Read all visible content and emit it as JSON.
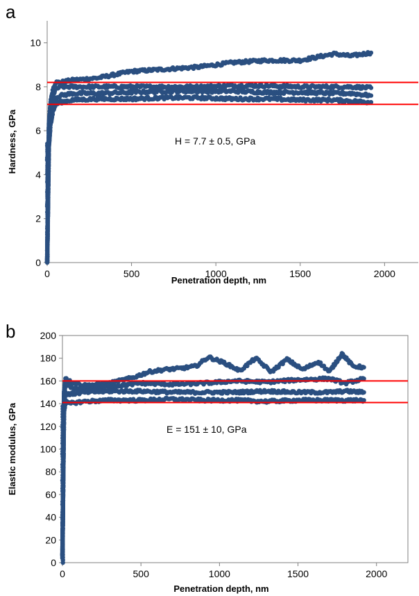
{
  "chart_data": [
    {
      "panel": "a",
      "type": "scatter",
      "xlabel": "Penetration depth,  nm",
      "ylabel": "Hardness,  GPa",
      "xlim": [
        0,
        2200
      ],
      "ylim": [
        0,
        11
      ],
      "xticks": [
        0,
        500,
        1000,
        1500,
        2000
      ],
      "yticks": [
        0,
        2,
        4,
        6,
        8,
        10
      ],
      "grid": false,
      "frame": "left-bottom",
      "series_color": "#2a4f80",
      "reference_color": "#ff0000",
      "reference_lines": [
        8.2,
        7.2
      ],
      "annotation": "H  =  7.7  ±  0.5,  GPa",
      "series": [
        {
          "x": [
            0,
            10,
            20,
            35,
            50,
            80,
            150,
            300,
            500,
            700,
            900,
            1100,
            1300,
            1500,
            1700,
            1800,
            1920
          ],
          "y": [
            0,
            6.3,
            7.3,
            7.9,
            8.2,
            8.2,
            8.3,
            8.4,
            8.7,
            8.8,
            8.9,
            9.1,
            9.2,
            9.2,
            9.5,
            9.4,
            9.55
          ]
        },
        {
          "x": [
            0,
            10,
            20,
            35,
            50,
            80,
            150,
            300,
            500,
            700,
            900,
            1100,
            1300,
            1500,
            1700,
            1800,
            1920
          ],
          "y": [
            0,
            5.9,
            7.0,
            7.6,
            7.9,
            8.0,
            8.0,
            8.0,
            8.0,
            8.0,
            8.0,
            8.05,
            8.05,
            8.0,
            8.0,
            8.0,
            7.95
          ]
        },
        {
          "x": [
            0,
            10,
            20,
            35,
            50,
            80,
            150,
            300,
            500,
            700,
            900,
            1100,
            1300,
            1500,
            1700,
            1800,
            1920
          ],
          "y": [
            0,
            5.5,
            6.6,
            7.2,
            7.5,
            7.6,
            7.7,
            7.7,
            7.75,
            7.8,
            7.8,
            7.8,
            7.75,
            7.75,
            7.7,
            7.7,
            7.6
          ]
        },
        {
          "x": [
            0,
            10,
            20,
            35,
            50,
            80,
            150,
            300,
            500,
            700,
            900,
            1100,
            1300,
            1500,
            1700,
            1800,
            1920
          ],
          "y": [
            0,
            5.2,
            6.3,
            6.9,
            7.2,
            7.3,
            7.4,
            7.45,
            7.45,
            7.5,
            7.5,
            7.45,
            7.45,
            7.4,
            7.4,
            7.35,
            7.3
          ]
        }
      ]
    },
    {
      "panel": "b",
      "type": "scatter",
      "xlabel": "Penetration depth,  nm",
      "ylabel": "Elastic modulus,  GPa",
      "xlim": [
        0,
        2200
      ],
      "ylim": [
        0,
        200
      ],
      "xticks": [
        0,
        500,
        1000,
        1500,
        2000
      ],
      "yticks": [
        0,
        20,
        40,
        60,
        80,
        100,
        120,
        140,
        160,
        180,
        200
      ],
      "grid": false,
      "frame": "box",
      "series_color": "#2a4f80",
      "reference_color": "#ff0000",
      "reference_lines": [
        160,
        141
      ],
      "annotation": "E  =  151  ±  10,  GPa",
      "series": [
        {
          "x": [
            0,
            10,
            20,
            40,
            80,
            150,
            300,
            450,
            550,
            650,
            750,
            850,
            930,
            1030,
            1130,
            1230,
            1330,
            1430,
            1530,
            1630,
            1700,
            1780,
            1850,
            1920
          ],
          "y": [
            5,
            150,
            163,
            160,
            158,
            156,
            158,
            163,
            168,
            170,
            171,
            173,
            181,
            176,
            169,
            180,
            168,
            179,
            170,
            177,
            168,
            184,
            173,
            172
          ]
        },
        {
          "x": [
            0,
            10,
            20,
            40,
            80,
            150,
            300,
            500,
            700,
            900,
            1100,
            1300,
            1500,
            1700,
            1800,
            1920
          ],
          "y": [
            5,
            145,
            158,
            155,
            153,
            153,
            155,
            158,
            157,
            158,
            160,
            159,
            161,
            162,
            158,
            162
          ]
        },
        {
          "x": [
            0,
            10,
            20,
            40,
            80,
            150,
            300,
            500,
            700,
            900,
            1100,
            1300,
            1500,
            1700,
            1800,
            1920
          ],
          "y": [
            5,
            140,
            150,
            148,
            149,
            150,
            151,
            151,
            150,
            150,
            150,
            151,
            150,
            150,
            151,
            150
          ]
        },
        {
          "x": [
            0,
            10,
            20,
            40,
            80,
            150,
            300,
            500,
            700,
            900,
            1100,
            1300,
            1500,
            1700,
            1800,
            1920
          ],
          "y": [
            5,
            133,
            142,
            140,
            141,
            142,
            143,
            143,
            144,
            143,
            143,
            142,
            143,
            143,
            143,
            143
          ]
        }
      ]
    }
  ]
}
